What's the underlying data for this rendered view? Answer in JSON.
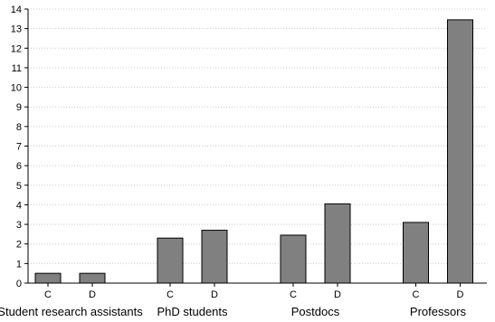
{
  "chart_data": {
    "type": "bar",
    "groups": [
      "Student research assistants",
      "PhD students",
      "Postdocs",
      "Professors"
    ],
    "subcategories": [
      "C",
      "D"
    ],
    "values": [
      [
        0.5,
        0.5
      ],
      [
        2.3,
        2.7
      ],
      [
        2.45,
        4.05
      ],
      [
        3.1,
        13.45
      ]
    ],
    "ylim": [
      0,
      14
    ],
    "yticks": [
      0,
      1,
      2,
      3,
      4,
      5,
      6,
      7,
      8,
      9,
      10,
      11,
      12,
      13,
      14
    ],
    "title": "",
    "xlabel": "",
    "ylabel": "",
    "grid": true,
    "bar_color": "#808080",
    "bar_edge_color": "#000000",
    "grid_color": "#cccccc"
  }
}
